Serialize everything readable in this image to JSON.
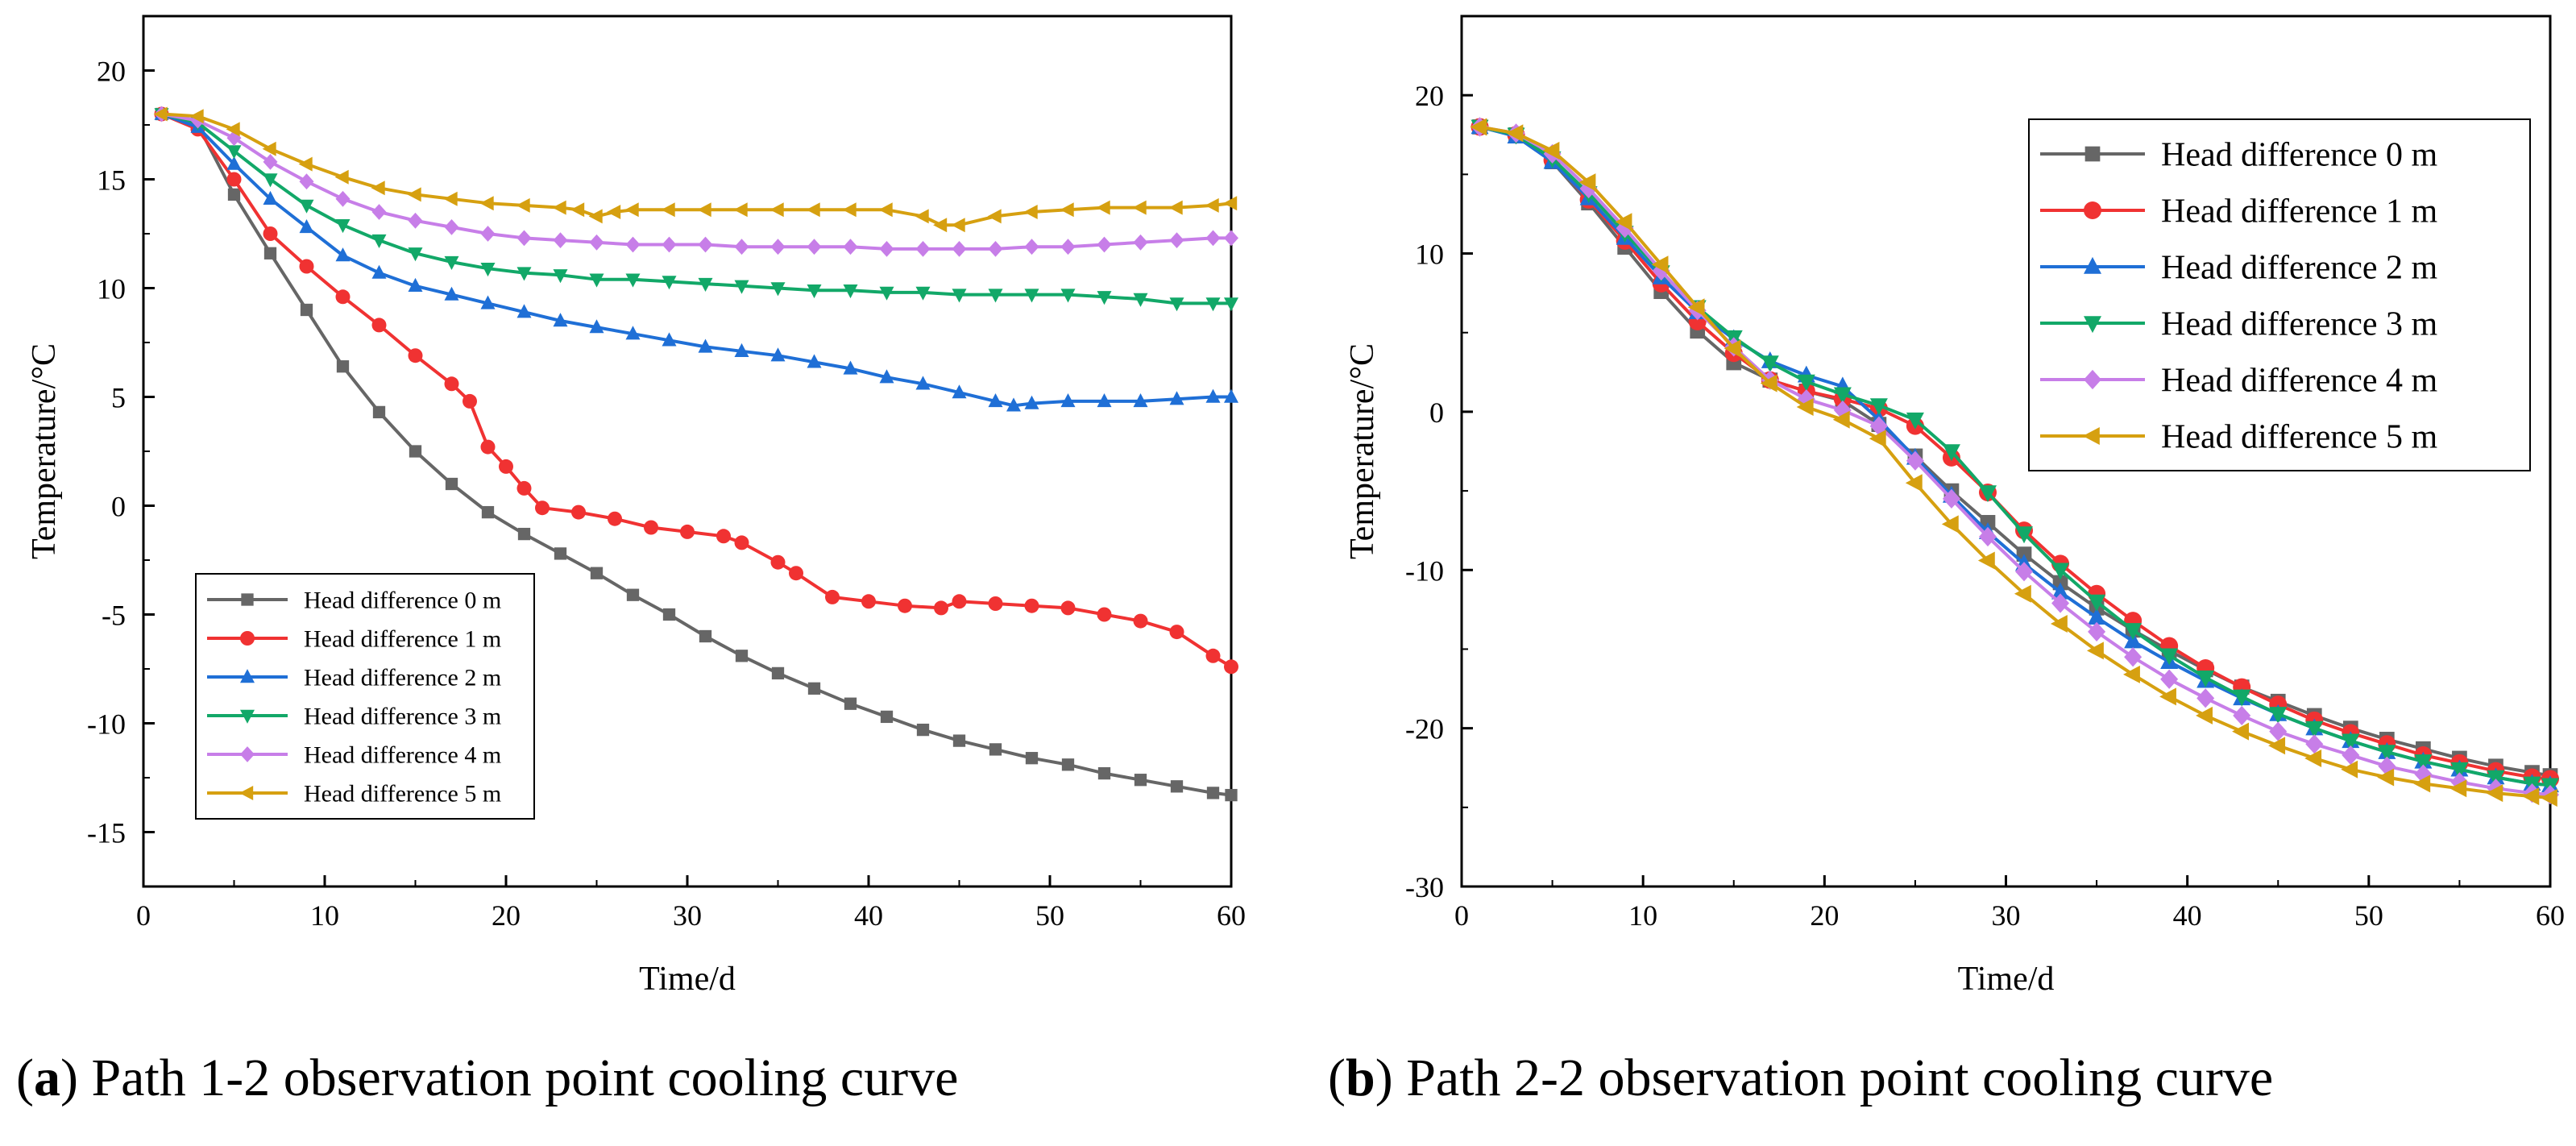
{
  "captions": [
    {
      "letter": "a",
      "text": " Path 1-2 observation point cooling curve"
    },
    {
      "letter": "b",
      "text": " Path 2-2 observation point cooling curve"
    }
  ],
  "colors": {
    "Head difference 0 m": "#666666",
    "Head difference 1 m": "#f03232",
    "Head difference 2 m": "#1f6fd6",
    "Head difference 3 m": "#12a868",
    "Head difference 4 m": "#c77ee8",
    "Head difference 5 m": "#d6a010"
  },
  "markers": {
    "Head difference 0 m": "square",
    "Head difference 1 m": "circle",
    "Head difference 2 m": "triangle-up",
    "Head difference 3 m": "triangle-down",
    "Head difference 4 m": "diamond",
    "Head difference 5 m": "triangle-left"
  },
  "chart_data": [
    {
      "type": "line",
      "title": "Path 1-2 observation point cooling curve",
      "xlabel": "Time/d",
      "ylabel": "Temperature/°C",
      "xlim": [
        0,
        60
      ],
      "ylim": [
        -17.5,
        22.5
      ],
      "xticks": [
        0,
        10,
        20,
        30,
        40,
        50,
        60
      ],
      "yticks": [
        -15,
        -10,
        -5,
        0,
        5,
        10,
        15,
        20
      ],
      "legend_position": "bottom-left",
      "series": [
        {
          "name": "Head difference 0 m",
          "x": [
            1,
            3,
            5,
            7,
            9,
            11,
            13,
            15,
            17,
            19,
            21,
            23,
            25,
            27,
            29,
            31,
            33,
            35,
            37,
            39,
            41,
            43,
            45,
            47,
            49,
            51,
            53,
            55,
            57,
            59,
            60
          ],
          "values": [
            18,
            17.5,
            14.3,
            11.6,
            9,
            6.4,
            4.3,
            2.5,
            1,
            -0.3,
            -1.3,
            -2.2,
            -3.1,
            -4.1,
            -5,
            -6,
            -6.9,
            -7.7,
            -8.4,
            -9.1,
            -9.7,
            -10.3,
            -10.8,
            -11.2,
            -11.6,
            -11.9,
            -12.3,
            -12.6,
            -12.9,
            -13.2,
            -13.3
          ]
        },
        {
          "name": "Head difference 1 m",
          "x": [
            1,
            3,
            5,
            7,
            9,
            11,
            13,
            15,
            17,
            18,
            19,
            20,
            21,
            22,
            24,
            26,
            28,
            30,
            32,
            33,
            35,
            36,
            38,
            40,
            42,
            44,
            45,
            47,
            49,
            51,
            53,
            55,
            57,
            59,
            60
          ],
          "values": [
            18,
            17.3,
            15,
            12.5,
            11,
            9.6,
            8.3,
            6.9,
            5.6,
            4.8,
            2.7,
            1.8,
            0.8,
            -0.1,
            -0.3,
            -0.6,
            -1,
            -1.2,
            -1.4,
            -1.7,
            -2.6,
            -3.1,
            -4.2,
            -4.4,
            -4.6,
            -4.7,
            -4.4,
            -4.5,
            -4.6,
            -4.7,
            -5,
            -5.3,
            -5.8,
            -6.9,
            -7.4
          ]
        },
        {
          "name": "Head difference 2 m",
          "x": [
            1,
            3,
            5,
            7,
            9,
            11,
            13,
            15,
            17,
            19,
            21,
            23,
            25,
            27,
            29,
            31,
            33,
            35,
            37,
            39,
            41,
            43,
            45,
            47,
            48,
            49,
            51,
            53,
            55,
            57,
            59,
            60
          ],
          "values": [
            18,
            17.4,
            15.7,
            14.1,
            12.8,
            11.5,
            10.7,
            10.1,
            9.7,
            9.3,
            8.9,
            8.5,
            8.2,
            7.9,
            7.6,
            7.3,
            7.1,
            6.9,
            6.6,
            6.3,
            5.9,
            5.6,
            5.2,
            4.8,
            4.6,
            4.7,
            4.8,
            4.8,
            4.8,
            4.9,
            5,
            5
          ]
        },
        {
          "name": "Head difference 3 m",
          "x": [
            1,
            3,
            5,
            7,
            9,
            11,
            13,
            15,
            17,
            19,
            21,
            23,
            25,
            27,
            29,
            31,
            33,
            35,
            37,
            39,
            41,
            43,
            45,
            47,
            49,
            51,
            53,
            55,
            57,
            59,
            60
          ],
          "values": [
            18,
            17.6,
            16.3,
            15,
            13.8,
            12.9,
            12.2,
            11.6,
            11.2,
            10.9,
            10.7,
            10.6,
            10.4,
            10.4,
            10.3,
            10.2,
            10.1,
            10,
            9.9,
            9.9,
            9.8,
            9.8,
            9.7,
            9.7,
            9.7,
            9.7,
            9.6,
            9.5,
            9.3,
            9.3,
            9.3
          ]
        },
        {
          "name": "Head difference 4 m",
          "x": [
            1,
            3,
            5,
            7,
            9,
            11,
            13,
            15,
            17,
            19,
            21,
            23,
            25,
            27,
            29,
            31,
            33,
            35,
            37,
            39,
            41,
            43,
            45,
            47,
            49,
            51,
            53,
            55,
            57,
            59,
            60
          ],
          "values": [
            18,
            17.7,
            16.9,
            15.8,
            14.9,
            14.1,
            13.5,
            13.1,
            12.8,
            12.5,
            12.3,
            12.2,
            12.1,
            12,
            12,
            12,
            11.9,
            11.9,
            11.9,
            11.9,
            11.8,
            11.8,
            11.8,
            11.8,
            11.9,
            11.9,
            12,
            12.1,
            12.2,
            12.3,
            12.3
          ]
        },
        {
          "name": "Head difference 5 m",
          "x": [
            1,
            3,
            5,
            7,
            9,
            11,
            13,
            15,
            17,
            19,
            21,
            23,
            24,
            25,
            26,
            27,
            29,
            31,
            33,
            35,
            37,
            39,
            41,
            43,
            44,
            45,
            47,
            49,
            51,
            53,
            55,
            57,
            59,
            60
          ],
          "values": [
            18,
            17.9,
            17.3,
            16.4,
            15.7,
            15.1,
            14.6,
            14.3,
            14.1,
            13.9,
            13.8,
            13.7,
            13.6,
            13.3,
            13.5,
            13.6,
            13.6,
            13.6,
            13.6,
            13.6,
            13.6,
            13.6,
            13.6,
            13.3,
            12.9,
            12.9,
            13.3,
            13.5,
            13.6,
            13.7,
            13.7,
            13.7,
            13.8,
            13.9
          ]
        }
      ]
    },
    {
      "type": "line",
      "title": "Path 2-2 observation point cooling curve",
      "xlabel": "Time/d",
      "ylabel": "Temperature/°C",
      "xlim": [
        0,
        60
      ],
      "ylim": [
        -30,
        25
      ],
      "xticks": [
        0,
        10,
        20,
        30,
        40,
        50,
        60
      ],
      "yticks": [
        -30,
        -20,
        -10,
        0,
        10,
        20
      ],
      "legend_position": "top-right",
      "series": [
        {
          "name": "Head difference 0 m",
          "x": [
            1,
            3,
            5,
            7,
            9,
            11,
            13,
            15,
            17,
            19,
            21,
            23,
            25,
            27,
            29,
            31,
            33,
            35,
            37,
            39,
            41,
            43,
            45,
            47,
            49,
            51,
            53,
            55,
            57,
            59,
            60
          ],
          "values": [
            18,
            17.5,
            15.8,
            13.2,
            10.4,
            7.6,
            5.1,
            3.1,
            2,
            1.3,
            0.7,
            -0.8,
            -2.8,
            -5,
            -7,
            -9,
            -10.8,
            -12.4,
            -13.8,
            -15.1,
            -16.3,
            -17.4,
            -18.3,
            -19.2,
            -20,
            -20.7,
            -21.3,
            -21.9,
            -22.4,
            -22.8,
            -23
          ]
        },
        {
          "name": "Head difference 1 m",
          "x": [
            1,
            3,
            5,
            7,
            9,
            11,
            13,
            15,
            17,
            19,
            21,
            23,
            25,
            27,
            29,
            31,
            33,
            35,
            37,
            39,
            41,
            43,
            45,
            47,
            49,
            51,
            53,
            55,
            57,
            59,
            60
          ],
          "values": [
            18,
            17.5,
            15.9,
            13.4,
            10.8,
            8.1,
            5.7,
            3.7,
            2,
            1.3,
            0.8,
            0.2,
            -0.9,
            -2.9,
            -5.1,
            -7.5,
            -9.6,
            -11.5,
            -13.2,
            -14.8,
            -16.2,
            -17.4,
            -18.5,
            -19.5,
            -20.3,
            -21,
            -21.7,
            -22.2,
            -22.7,
            -23.1,
            -23.2
          ]
        },
        {
          "name": "Head difference 2 m",
          "x": [
            1,
            3,
            5,
            7,
            9,
            11,
            13,
            15,
            17,
            19,
            21,
            23,
            25,
            27,
            29,
            31,
            33,
            35,
            37,
            39,
            41,
            43,
            45,
            47,
            49,
            51,
            53,
            55,
            57,
            59,
            60
          ],
          "values": [
            18,
            17.4,
            15.8,
            13.5,
            11,
            8.5,
            6.3,
            4.6,
            3.2,
            2.3,
            1.6,
            -0.5,
            -2.9,
            -5.3,
            -7.6,
            -9.6,
            -11.4,
            -13,
            -14.5,
            -15.8,
            -17,
            -18.1,
            -19.1,
            -20,
            -20.8,
            -21.5,
            -22.1,
            -22.6,
            -23.1,
            -23.5,
            -23.6
          ]
        },
        {
          "name": "Head difference 3 m",
          "x": [
            1,
            3,
            5,
            7,
            9,
            11,
            13,
            15,
            17,
            19,
            21,
            23,
            25,
            27,
            29,
            31,
            33,
            35,
            37,
            39,
            41,
            43,
            45,
            47,
            49,
            51,
            53,
            55,
            57,
            59,
            60
          ],
          "values": [
            18,
            17.5,
            16,
            13.8,
            11.3,
            8.8,
            6.6,
            4.7,
            3.1,
            1.9,
            1.1,
            0.4,
            -0.5,
            -2.5,
            -5.1,
            -7.7,
            -10,
            -12,
            -13.8,
            -15.4,
            -16.8,
            -18,
            -19.1,
            -20,
            -20.8,
            -21.5,
            -22.1,
            -22.6,
            -23.1,
            -23.5,
            -23.6
          ]
        },
        {
          "name": "Head difference 4 m",
          "x": [
            1,
            3,
            5,
            7,
            9,
            11,
            13,
            15,
            17,
            19,
            21,
            23,
            25,
            27,
            29,
            31,
            33,
            35,
            37,
            39,
            41,
            43,
            45,
            47,
            49,
            51,
            53,
            55,
            57,
            59,
            60
          ],
          "values": [
            18,
            17.6,
            16.3,
            14.1,
            11.6,
            8.9,
            6.4,
            4.1,
            2,
            0.8,
            0.1,
            -0.9,
            -3.1,
            -5.5,
            -7.9,
            -10.1,
            -12.1,
            -13.9,
            -15.5,
            -16.9,
            -18.1,
            -19.2,
            -20.2,
            -21,
            -21.7,
            -22.4,
            -22.9,
            -23.4,
            -23.8,
            -24.1,
            -24.2
          ]
        },
        {
          "name": "Head difference 5 m",
          "x": [
            1,
            3,
            5,
            7,
            9,
            11,
            13,
            15,
            17,
            19,
            21,
            23,
            25,
            27,
            29,
            31,
            33,
            35,
            37,
            39,
            41,
            43,
            45,
            47,
            49,
            51,
            53,
            55,
            57,
            59,
            60
          ],
          "values": [
            18,
            17.6,
            16.5,
            14.5,
            12,
            9.3,
            6.6,
            4,
            1.8,
            0.3,
            -0.5,
            -1.7,
            -4.5,
            -7.1,
            -9.4,
            -11.5,
            -13.4,
            -15.1,
            -16.6,
            -18,
            -19.2,
            -20.2,
            -21.1,
            -21.9,
            -22.6,
            -23.1,
            -23.5,
            -23.8,
            -24.1,
            -24.3,
            -24.4
          ]
        }
      ]
    }
  ]
}
